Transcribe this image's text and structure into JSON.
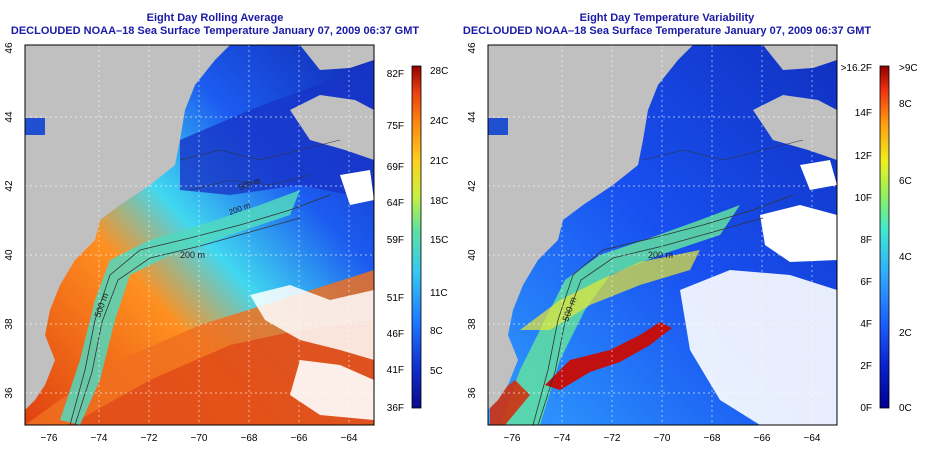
{
  "left_panel": {
    "title": "Eight Day Rolling Average",
    "subtitle": "DECLOUDED NOAA–18 Sea Surface Temperature January 07, 2009 06:37 GMT",
    "colorbar": {
      "f_labels": [
        "82F",
        "75F",
        "69F",
        "64F",
        "59F",
        "51F",
        "46F",
        "41F",
        "36F"
      ],
      "c_labels": [
        "28C",
        "24C",
        "21C",
        "18C",
        "15C",
        "11C",
        "8C",
        "5C"
      ]
    },
    "contour_labels": [
      "200 m",
      "500 m",
      "200 m",
      "500 m"
    ]
  },
  "right_panel": {
    "title": "Eight Day Temperature Variability",
    "subtitle": "DECLOUDED NOAA–18 Sea Surface Temperature January 07, 2009 06:37 GMT",
    "colorbar": {
      "f_labels": [
        ">16.2F",
        "14F",
        "12F",
        "10F",
        "8F",
        "6F",
        "4F",
        "2F",
        "0F"
      ],
      "c_labels": [
        ">9C",
        "8C",
        "6C",
        "4C",
        "2C",
        "0C"
      ]
    },
    "contour_labels": [
      "200 m",
      "500 m"
    ]
  },
  "axes": {
    "lon_ticks": [
      "−76",
      "−74",
      "−72",
      "−70",
      "−68",
      "−66",
      "−64"
    ],
    "lat_ticks": [
      "46",
      "44",
      "42",
      "40",
      "38",
      "36"
    ]
  },
  "colors": {
    "title": "#1a1aa6",
    "land": "#c0c0c0",
    "cloud": "#ffffff",
    "sst_scale": [
      "#0a0a8a",
      "#1030d0",
      "#1e78ff",
      "#38c8f0",
      "#5ee0a0",
      "#c8f040",
      "#ffd020",
      "#ff8a10",
      "#e83a10",
      "#900000"
    ],
    "variability_scale": [
      "#000090",
      "#0a20d0",
      "#1c60ff",
      "#30b0ff",
      "#40e8d0",
      "#90f060",
      "#f0f020",
      "#ffa010",
      "#f03010",
      "#900000"
    ]
  }
}
